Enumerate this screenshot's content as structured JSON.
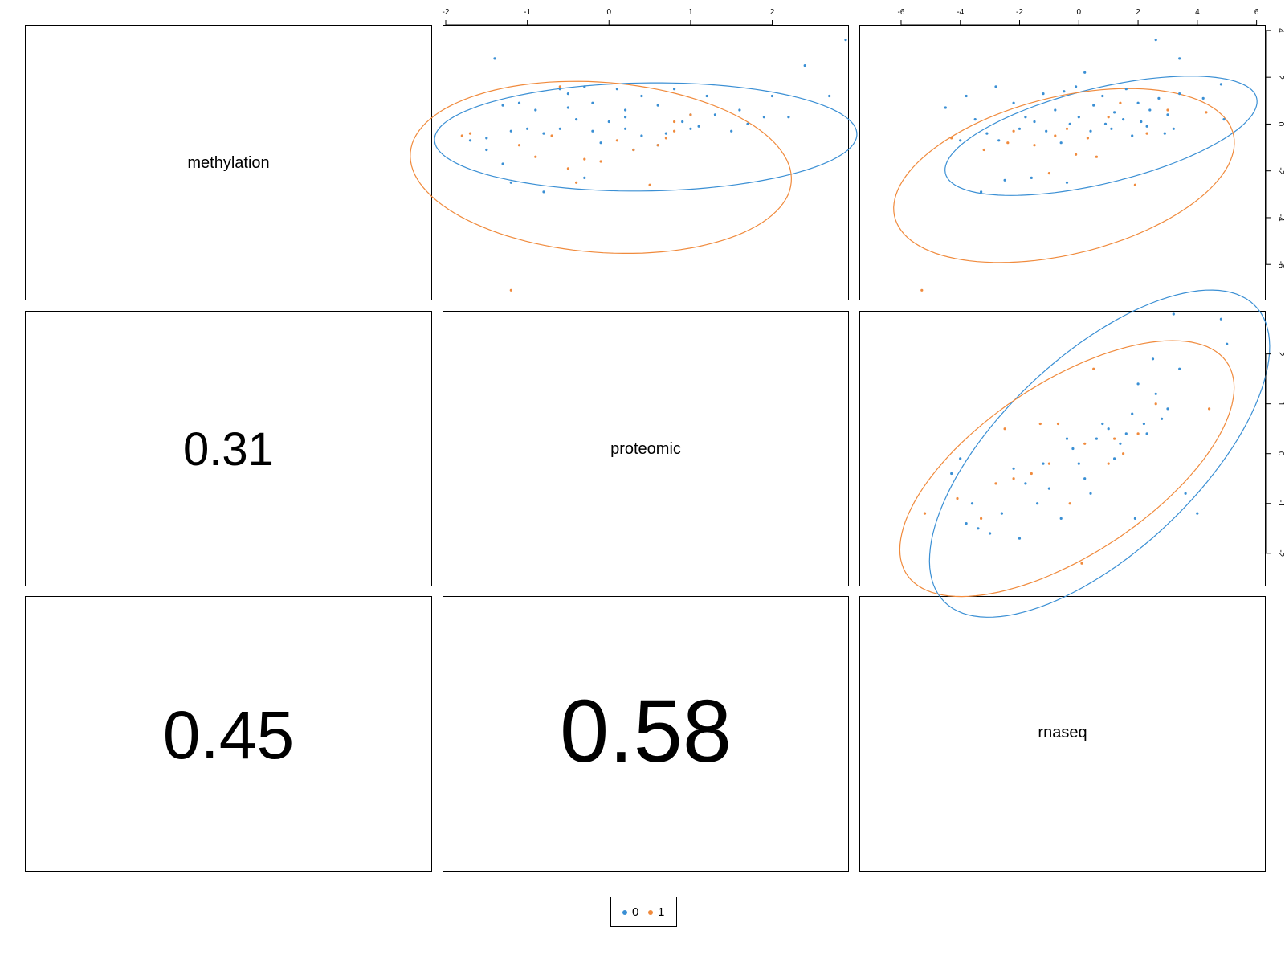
{
  "colors": {
    "group0": "#3a8fd4",
    "group1": "#f08a3c",
    "frame": "#000000"
  },
  "legend": {
    "items": [
      {
        "label": "0",
        "color": "#3a8fd4"
      },
      {
        "label": "1",
        "color": "#f08a3c"
      }
    ]
  },
  "panels": {
    "diag_methylation": "methylation",
    "diag_proteomic": "proteomic",
    "diag_rnaseq": "rnaseq",
    "corr_meth_prot": "0.31",
    "corr_meth_rna": "0.45",
    "corr_prot_rna": "0.58"
  },
  "chart_data": [
    {
      "type": "scatter",
      "panel": "row1-col2",
      "x_variable": "proteomic",
      "y_variable": "methylation",
      "xlim": [
        -2.0,
        2.9
      ],
      "ylim": [
        -7.4,
        4.1
      ],
      "x_ticks": [
        -2,
        -1,
        0,
        1,
        2
      ],
      "y_ticks": [
        -6,
        -4,
        -2,
        0,
        2,
        4
      ],
      "x_axis_position": "top",
      "y_axis_position": "none",
      "grid": false,
      "ellipses": [
        {
          "group": "0",
          "center": [
            0.45,
            -0.55
          ],
          "a": 2.6,
          "b": 2.3,
          "angle_deg": 12
        },
        {
          "group": "1",
          "center": [
            -0.1,
            -1.85
          ],
          "a": 2.3,
          "b": 3.7,
          "angle_deg": 8
        }
      ],
      "series": [
        {
          "name": "0",
          "points": [
            [
              -1.4,
              2.8
            ],
            [
              -1.3,
              0.8
            ],
            [
              -1.1,
              0.9
            ],
            [
              -0.9,
              0.6
            ],
            [
              -0.6,
              1.5
            ],
            [
              -0.5,
              1.3
            ],
            [
              -0.3,
              1.6
            ],
            [
              -0.2,
              0.9
            ],
            [
              0.1,
              1.5
            ],
            [
              0.2,
              0.6
            ],
            [
              0.4,
              1.2
            ],
            [
              0.6,
              0.8
            ],
            [
              0.8,
              1.5
            ],
            [
              1.0,
              0.4
            ],
            [
              1.2,
              1.2
            ],
            [
              1.3,
              0.4
            ],
            [
              1.6,
              0.6
            ],
            [
              1.9,
              0.3
            ],
            [
              2.0,
              1.2
            ],
            [
              2.2,
              0.3
            ],
            [
              2.4,
              2.5
            ],
            [
              2.7,
              1.2
            ],
            [
              2.9,
              3.6
            ],
            [
              -1.2,
              -0.3
            ],
            [
              -1.0,
              -0.2
            ],
            [
              -0.8,
              -0.4
            ],
            [
              -0.6,
              -0.2
            ],
            [
              -0.4,
              0.2
            ],
            [
              -0.2,
              -0.3
            ],
            [
              0.0,
              0.1
            ],
            [
              0.2,
              -0.2
            ],
            [
              0.4,
              -0.5
            ],
            [
              0.7,
              -0.4
            ],
            [
              0.9,
              0.1
            ],
            [
              1.1,
              -0.1
            ],
            [
              1.5,
              -0.3
            ],
            [
              1.7,
              0.0
            ],
            [
              -1.5,
              -0.6
            ],
            [
              -1.7,
              -0.7
            ],
            [
              -1.3,
              -1.7
            ],
            [
              -1.2,
              -2.5
            ],
            [
              -0.8,
              -2.9
            ],
            [
              -0.3,
              -2.3
            ],
            [
              0.3,
              -1.1
            ],
            [
              -0.1,
              -0.8
            ],
            [
              0.6,
              -0.9
            ],
            [
              -1.5,
              -1.1
            ],
            [
              0.2,
              0.3
            ],
            [
              -0.5,
              0.7
            ],
            [
              1.0,
              -0.2
            ]
          ]
        },
        {
          "name": "1",
          "points": [
            [
              -1.8,
              -0.5
            ],
            [
              -1.7,
              -0.4
            ],
            [
              -1.1,
              -0.9
            ],
            [
              -0.9,
              -1.4
            ],
            [
              -0.7,
              -0.5
            ],
            [
              -0.5,
              -1.9
            ],
            [
              -0.3,
              -1.5
            ],
            [
              -0.1,
              -1.6
            ],
            [
              0.1,
              -0.7
            ],
            [
              0.3,
              -1.1
            ],
            [
              0.6,
              -0.9
            ],
            [
              0.8,
              0.1
            ],
            [
              0.8,
              -0.3
            ],
            [
              1.0,
              0.4
            ],
            [
              -0.6,
              1.6
            ],
            [
              0.5,
              -2.6
            ],
            [
              -1.2,
              -7.1
            ],
            [
              -0.4,
              -2.5
            ],
            [
              0.7,
              -0.6
            ]
          ]
        }
      ]
    },
    {
      "type": "scatter",
      "panel": "row1-col3",
      "x_variable": "rnaseq",
      "y_variable": "methylation",
      "xlim": [
        -7.3,
        6.2
      ],
      "ylim": [
        -7.4,
        4.1
      ],
      "x_ticks": [
        -6,
        -4,
        -2,
        0,
        2,
        4,
        6
      ],
      "y_ticks": [
        -6,
        -4,
        -2,
        0,
        2,
        4
      ],
      "x_axis_position": "top",
      "y_axis_position": "right",
      "grid": false,
      "ellipses": [
        {
          "group": "0",
          "center": [
            0.75,
            -0.5
          ],
          "a": 5.5,
          "b": 2.0,
          "angle_deg": 18
        },
        {
          "group": "1",
          "center": [
            -0.5,
            -2.2
          ],
          "a": 6.0,
          "b": 3.3,
          "angle_deg": 20
        }
      ],
      "series": [
        {
          "name": "0",
          "points": [
            [
              -4.5,
              0.7
            ],
            [
              -3.8,
              1.2
            ],
            [
              -3.5,
              0.2
            ],
            [
              -2.8,
              1.6
            ],
            [
              -2.2,
              0.9
            ],
            [
              -1.8,
              0.3
            ],
            [
              -1.2,
              1.3
            ],
            [
              -0.8,
              0.6
            ],
            [
              -0.5,
              1.4
            ],
            [
              -0.1,
              1.6
            ],
            [
              0.2,
              2.2
            ],
            [
              0.5,
              0.8
            ],
            [
              0.8,
              1.2
            ],
            [
              1.2,
              0.5
            ],
            [
              1.6,
              1.5
            ],
            [
              2.0,
              0.9
            ],
            [
              2.4,
              0.6
            ],
            [
              2.7,
              1.1
            ],
            [
              3.0,
              0.4
            ],
            [
              3.4,
              1.3
            ],
            [
              4.2,
              1.1
            ],
            [
              4.8,
              1.7
            ],
            [
              4.9,
              0.2
            ],
            [
              2.6,
              3.6
            ],
            [
              3.4,
              2.8
            ],
            [
              -3.3,
              -2.9
            ],
            [
              -2.5,
              -2.4
            ],
            [
              -1.6,
              -2.3
            ],
            [
              -0.4,
              -2.5
            ],
            [
              -4.0,
              -0.7
            ],
            [
              -3.1,
              -0.4
            ],
            [
              -2.0,
              -0.2
            ],
            [
              -1.1,
              -0.3
            ],
            [
              -0.3,
              0.0
            ],
            [
              0.4,
              -0.3
            ],
            [
              1.1,
              -0.2
            ],
            [
              1.8,
              -0.5
            ],
            [
              2.3,
              -0.1
            ],
            [
              2.9,
              -0.4
            ],
            [
              0.9,
              0.0
            ],
            [
              -1.5,
              0.1
            ],
            [
              -2.7,
              -0.7
            ],
            [
              0.0,
              0.3
            ],
            [
              1.5,
              0.2
            ],
            [
              -0.6,
              -0.8
            ],
            [
              2.1,
              0.1
            ],
            [
              3.2,
              -0.2
            ]
          ]
        },
        {
          "name": "1",
          "points": [
            [
              -5.3,
              -7.1
            ],
            [
              -4.3,
              -0.6
            ],
            [
              -3.2,
              -1.1
            ],
            [
              -2.4,
              -0.8
            ],
            [
              -1.5,
              -0.9
            ],
            [
              -0.8,
              -0.5
            ],
            [
              -0.1,
              -1.3
            ],
            [
              0.6,
              -1.4
            ],
            [
              1.0,
              0.3
            ],
            [
              1.9,
              -2.6
            ],
            [
              2.3,
              -0.4
            ],
            [
              3.0,
              0.6
            ],
            [
              4.3,
              0.5
            ],
            [
              -2.2,
              -0.3
            ],
            [
              -0.4,
              -0.2
            ],
            [
              1.4,
              0.9
            ],
            [
              -1.0,
              -2.1
            ],
            [
              0.3,
              -0.6
            ]
          ]
        }
      ]
    },
    {
      "type": "scatter",
      "panel": "row2-col3",
      "x_variable": "rnaseq",
      "y_variable": "proteomic",
      "xlim": [
        -7.3,
        6.2
      ],
      "ylim": [
        -2.6,
        2.8
      ],
      "x_ticks": [
        -6,
        -4,
        -2,
        0,
        2,
        4,
        6
      ],
      "y_ticks": [
        -2,
        -1,
        0,
        1,
        2
      ],
      "x_axis_position": "none",
      "y_axis_position": "right",
      "grid": false,
      "ellipses": [
        {
          "group": "0",
          "center": [
            0.7,
            0.0
          ],
          "a": 6.2,
          "b": 2.3,
          "angle_deg": 24
        },
        {
          "group": "1",
          "center": [
            -0.4,
            -0.3
          ],
          "a": 5.9,
          "b": 1.9,
          "angle_deg": 18
        }
      ],
      "series": [
        {
          "name": "0",
          "points": [
            [
              -4.3,
              -0.4
            ],
            [
              -4.0,
              -0.1
            ],
            [
              -3.6,
              -1.0
            ],
            [
              -3.4,
              -1.5
            ],
            [
              -3.0,
              -1.6
            ],
            [
              -2.6,
              -1.2
            ],
            [
              -2.2,
              -0.3
            ],
            [
              -1.8,
              -0.6
            ],
            [
              -1.4,
              -1.0
            ],
            [
              -1.0,
              -0.7
            ],
            [
              -0.6,
              -1.3
            ],
            [
              -0.2,
              0.1
            ],
            [
              0.2,
              -0.5
            ],
            [
              0.6,
              0.3
            ],
            [
              1.0,
              0.5
            ],
            [
              1.4,
              0.2
            ],
            [
              1.8,
              0.8
            ],
            [
              2.2,
              0.6
            ],
            [
              2.6,
              1.2
            ],
            [
              3.0,
              0.9
            ],
            [
              3.4,
              1.7
            ],
            [
              4.0,
              -1.2
            ],
            [
              4.8,
              2.7
            ],
            [
              5.0,
              2.2
            ],
            [
              2.5,
              1.9
            ],
            [
              3.2,
              2.8
            ],
            [
              -3.8,
              -1.4
            ],
            [
              -2.0,
              -1.7
            ],
            [
              0.0,
              -0.2
            ],
            [
              0.4,
              -0.8
            ],
            [
              1.2,
              -0.1
            ],
            [
              1.6,
              0.4
            ],
            [
              2.0,
              1.4
            ],
            [
              2.8,
              0.7
            ],
            [
              3.6,
              -0.8
            ],
            [
              -1.2,
              -0.2
            ],
            [
              -0.4,
              0.3
            ],
            [
              0.8,
              0.6
            ],
            [
              1.9,
              -1.3
            ],
            [
              2.3,
              0.4
            ]
          ]
        },
        {
          "name": "1",
          "points": [
            [
              -5.2,
              -1.2
            ],
            [
              -4.1,
              -0.9
            ],
            [
              -3.3,
              -1.3
            ],
            [
              -2.8,
              -0.6
            ],
            [
              -2.2,
              -0.5
            ],
            [
              -1.6,
              -0.4
            ],
            [
              -1.3,
              0.6
            ],
            [
              -0.7,
              0.6
            ],
            [
              -0.3,
              -1.0
            ],
            [
              0.2,
              0.2
            ],
            [
              0.5,
              1.7
            ],
            [
              1.0,
              -0.2
            ],
            [
              1.5,
              0.0
            ],
            [
              2.0,
              0.4
            ],
            [
              2.6,
              1.0
            ],
            [
              4.4,
              0.9
            ],
            [
              0.1,
              -2.2
            ],
            [
              -2.5,
              0.5
            ],
            [
              1.2,
              0.3
            ],
            [
              -1.0,
              -0.2
            ]
          ]
        }
      ]
    }
  ]
}
